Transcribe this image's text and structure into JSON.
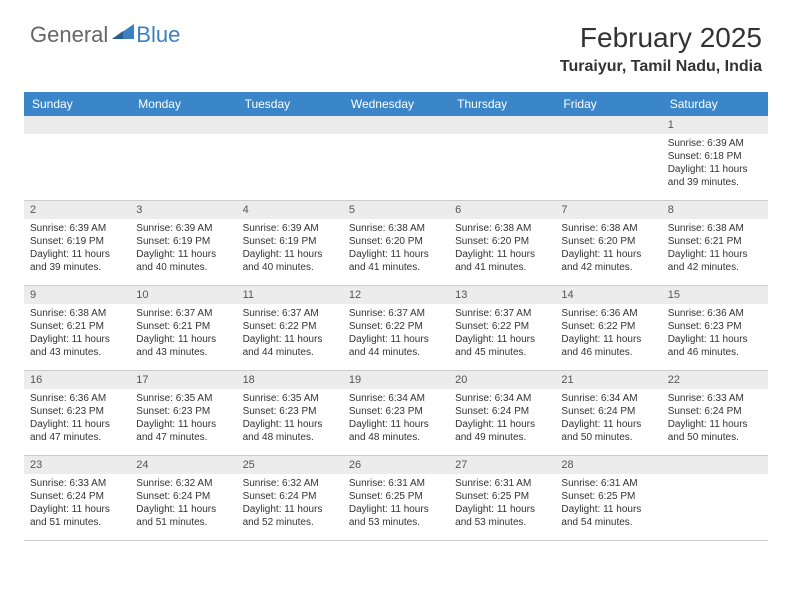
{
  "logo": {
    "word1": "General",
    "word2": "Blue"
  },
  "title": "February 2025",
  "location": "Turaiyur, Tamil Nadu, India",
  "colors": {
    "header_bg": "#3b86c8",
    "header_text": "#ffffff",
    "daynum_bg": "#ececec",
    "body_text": "#333333",
    "logo_gray": "#666666",
    "logo_blue": "#3d7fbf",
    "border": "#cccccc"
  },
  "fonts": {
    "title_size": 28,
    "location_size": 16,
    "dayheader_size": 12,
    "daynum_size": 11,
    "body_size": 10
  },
  "day_names": [
    "Sunday",
    "Monday",
    "Tuesday",
    "Wednesday",
    "Thursday",
    "Friday",
    "Saturday"
  ],
  "weeks": [
    [
      {
        "n": "",
        "sr": "",
        "ss": "",
        "dl": ""
      },
      {
        "n": "",
        "sr": "",
        "ss": "",
        "dl": ""
      },
      {
        "n": "",
        "sr": "",
        "ss": "",
        "dl": ""
      },
      {
        "n": "",
        "sr": "",
        "ss": "",
        "dl": ""
      },
      {
        "n": "",
        "sr": "",
        "ss": "",
        "dl": ""
      },
      {
        "n": "",
        "sr": "",
        "ss": "",
        "dl": ""
      },
      {
        "n": "1",
        "sr": "Sunrise: 6:39 AM",
        "ss": "Sunset: 6:18 PM",
        "dl": "Daylight: 11 hours and 39 minutes."
      }
    ],
    [
      {
        "n": "2",
        "sr": "Sunrise: 6:39 AM",
        "ss": "Sunset: 6:19 PM",
        "dl": "Daylight: 11 hours and 39 minutes."
      },
      {
        "n": "3",
        "sr": "Sunrise: 6:39 AM",
        "ss": "Sunset: 6:19 PM",
        "dl": "Daylight: 11 hours and 40 minutes."
      },
      {
        "n": "4",
        "sr": "Sunrise: 6:39 AM",
        "ss": "Sunset: 6:19 PM",
        "dl": "Daylight: 11 hours and 40 minutes."
      },
      {
        "n": "5",
        "sr": "Sunrise: 6:38 AM",
        "ss": "Sunset: 6:20 PM",
        "dl": "Daylight: 11 hours and 41 minutes."
      },
      {
        "n": "6",
        "sr": "Sunrise: 6:38 AM",
        "ss": "Sunset: 6:20 PM",
        "dl": "Daylight: 11 hours and 41 minutes."
      },
      {
        "n": "7",
        "sr": "Sunrise: 6:38 AM",
        "ss": "Sunset: 6:20 PM",
        "dl": "Daylight: 11 hours and 42 minutes."
      },
      {
        "n": "8",
        "sr": "Sunrise: 6:38 AM",
        "ss": "Sunset: 6:21 PM",
        "dl": "Daylight: 11 hours and 42 minutes."
      }
    ],
    [
      {
        "n": "9",
        "sr": "Sunrise: 6:38 AM",
        "ss": "Sunset: 6:21 PM",
        "dl": "Daylight: 11 hours and 43 minutes."
      },
      {
        "n": "10",
        "sr": "Sunrise: 6:37 AM",
        "ss": "Sunset: 6:21 PM",
        "dl": "Daylight: 11 hours and 43 minutes."
      },
      {
        "n": "11",
        "sr": "Sunrise: 6:37 AM",
        "ss": "Sunset: 6:22 PM",
        "dl": "Daylight: 11 hours and 44 minutes."
      },
      {
        "n": "12",
        "sr": "Sunrise: 6:37 AM",
        "ss": "Sunset: 6:22 PM",
        "dl": "Daylight: 11 hours and 44 minutes."
      },
      {
        "n": "13",
        "sr": "Sunrise: 6:37 AM",
        "ss": "Sunset: 6:22 PM",
        "dl": "Daylight: 11 hours and 45 minutes."
      },
      {
        "n": "14",
        "sr": "Sunrise: 6:36 AM",
        "ss": "Sunset: 6:22 PM",
        "dl": "Daylight: 11 hours and 46 minutes."
      },
      {
        "n": "15",
        "sr": "Sunrise: 6:36 AM",
        "ss": "Sunset: 6:23 PM",
        "dl": "Daylight: 11 hours and 46 minutes."
      }
    ],
    [
      {
        "n": "16",
        "sr": "Sunrise: 6:36 AM",
        "ss": "Sunset: 6:23 PM",
        "dl": "Daylight: 11 hours and 47 minutes."
      },
      {
        "n": "17",
        "sr": "Sunrise: 6:35 AM",
        "ss": "Sunset: 6:23 PM",
        "dl": "Daylight: 11 hours and 47 minutes."
      },
      {
        "n": "18",
        "sr": "Sunrise: 6:35 AM",
        "ss": "Sunset: 6:23 PM",
        "dl": "Daylight: 11 hours and 48 minutes."
      },
      {
        "n": "19",
        "sr": "Sunrise: 6:34 AM",
        "ss": "Sunset: 6:23 PM",
        "dl": "Daylight: 11 hours and 48 minutes."
      },
      {
        "n": "20",
        "sr": "Sunrise: 6:34 AM",
        "ss": "Sunset: 6:24 PM",
        "dl": "Daylight: 11 hours and 49 minutes."
      },
      {
        "n": "21",
        "sr": "Sunrise: 6:34 AM",
        "ss": "Sunset: 6:24 PM",
        "dl": "Daylight: 11 hours and 50 minutes."
      },
      {
        "n": "22",
        "sr": "Sunrise: 6:33 AM",
        "ss": "Sunset: 6:24 PM",
        "dl": "Daylight: 11 hours and 50 minutes."
      }
    ],
    [
      {
        "n": "23",
        "sr": "Sunrise: 6:33 AM",
        "ss": "Sunset: 6:24 PM",
        "dl": "Daylight: 11 hours and 51 minutes."
      },
      {
        "n": "24",
        "sr": "Sunrise: 6:32 AM",
        "ss": "Sunset: 6:24 PM",
        "dl": "Daylight: 11 hours and 51 minutes."
      },
      {
        "n": "25",
        "sr": "Sunrise: 6:32 AM",
        "ss": "Sunset: 6:24 PM",
        "dl": "Daylight: 11 hours and 52 minutes."
      },
      {
        "n": "26",
        "sr": "Sunrise: 6:31 AM",
        "ss": "Sunset: 6:25 PM",
        "dl": "Daylight: 11 hours and 53 minutes."
      },
      {
        "n": "27",
        "sr": "Sunrise: 6:31 AM",
        "ss": "Sunset: 6:25 PM",
        "dl": "Daylight: 11 hours and 53 minutes."
      },
      {
        "n": "28",
        "sr": "Sunrise: 6:31 AM",
        "ss": "Sunset: 6:25 PM",
        "dl": "Daylight: 11 hours and 54 minutes."
      },
      {
        "n": "",
        "sr": "",
        "ss": "",
        "dl": ""
      }
    ]
  ]
}
